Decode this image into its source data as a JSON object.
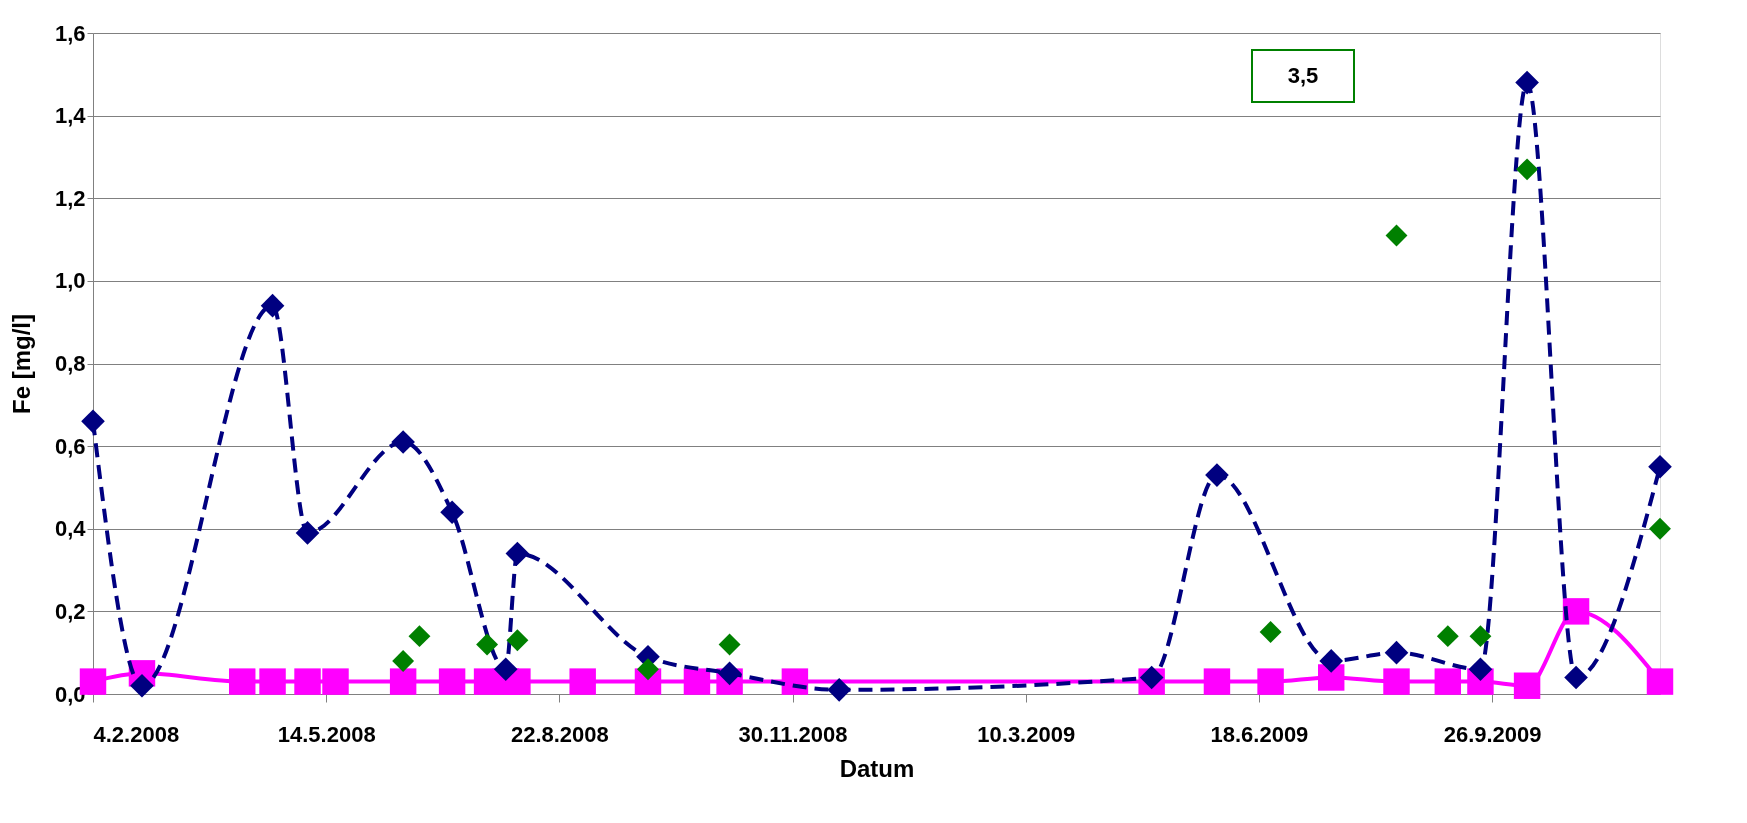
{
  "chart_data": {
    "type": "line",
    "xlabel": "Datum",
    "ylabel": "Fe [mg/l]",
    "xlim": [
      "2008-02-04",
      "2009-12-07"
    ],
    "xticks": [
      {
        "value": "2008-02-04",
        "label": "4.2.2008"
      },
      {
        "value": "2008-05-14",
        "label": "14.5.2008"
      },
      {
        "value": "2008-08-22",
        "label": "22.8.2008"
      },
      {
        "value": "2008-11-30",
        "label": "30.11.2008"
      },
      {
        "value": "2009-03-10",
        "label": "10.3.2009"
      },
      {
        "value": "2009-06-18",
        "label": "18.6.2009"
      },
      {
        "value": "2009-09-26",
        "label": "26.9.2009"
      }
    ],
    "ylim": [
      0,
      1.6
    ],
    "yticks": [
      {
        "value": 0,
        "label": "0,0"
      },
      {
        "value": 0.2,
        "label": "0,2"
      },
      {
        "value": 0.4,
        "label": "0,4"
      },
      {
        "value": 0.6,
        "label": "0,6"
      },
      {
        "value": 0.8,
        "label": "0,8"
      },
      {
        "value": 1.0,
        "label": "1,0"
      },
      {
        "value": 1.2,
        "label": "1,2"
      },
      {
        "value": 1.4,
        "label": "1,4"
      },
      {
        "value": 1.6,
        "label": "1,6"
      }
    ],
    "grid": "y",
    "annotations": [
      "3,5"
    ],
    "series": [
      {
        "color": "#000080",
        "marker": "diamond",
        "line_style": "dashed",
        "x": [
          "2008-02-04",
          "2008-02-25",
          "2008-04-21",
          "2008-05-06",
          "2008-06-16",
          "2008-07-07",
          "2008-07-30",
          "2008-08-04",
          "2008-09-29",
          "2008-11-03",
          "2008-12-20",
          "2009-05-03",
          "2009-05-31",
          "2009-07-19",
          "2009-08-16",
          "2009-09-21",
          "2009-10-11",
          "2009-11-01",
          "2009-12-07"
        ],
        "values": [
          0.66,
          0.02,
          0.94,
          0.39,
          0.61,
          0.44,
          0.06,
          0.34,
          0.09,
          0.05,
          0.01,
          0.04,
          0.53,
          0.08,
          0.1,
          0.06,
          1.48,
          0.04,
          0.55
        ]
      },
      {
        "color": "#ff00ff",
        "marker": "square",
        "line_style": "solid",
        "x": [
          "2008-02-04",
          "2008-02-25",
          "2008-04-08",
          "2008-04-21",
          "2008-05-06",
          "2008-05-18",
          "2008-06-16",
          "2008-07-07",
          "2008-07-22",
          "2008-07-30",
          "2008-08-04",
          "2008-09-01",
          "2008-09-29",
          "2008-10-20",
          "2008-11-03",
          "2008-12-01",
          "2009-05-03",
          "2009-05-31",
          "2009-06-23",
          "2009-07-19",
          "2009-08-16",
          "2009-09-07",
          "2009-09-21",
          "2009-10-11",
          "2009-11-01",
          "2009-12-07"
        ],
        "values": [
          0.03,
          0.05,
          0.03,
          0.03,
          0.03,
          0.03,
          0.03,
          0.03,
          0.03,
          0.03,
          0.03,
          0.03,
          0.03,
          0.03,
          0.03,
          0.03,
          0.03,
          0.03,
          0.03,
          0.04,
          0.03,
          0.03,
          0.03,
          0.02,
          0.2,
          0.03
        ]
      },
      {
        "type": "scatter",
        "color": "#008000",
        "marker": "diamond",
        "x": [
          "2008-06-16",
          "2008-06-23",
          "2008-07-22",
          "2008-08-04",
          "2008-09-29",
          "2008-11-03",
          "2009-06-23",
          "2009-08-16",
          "2009-09-07",
          "2009-09-21",
          "2009-10-11",
          "2009-12-07"
        ],
        "values": [
          0.08,
          0.14,
          0.12,
          0.13,
          0.06,
          0.12,
          0.15,
          1.11,
          0.14,
          0.14,
          1.27,
          0.4
        ]
      }
    ]
  }
}
